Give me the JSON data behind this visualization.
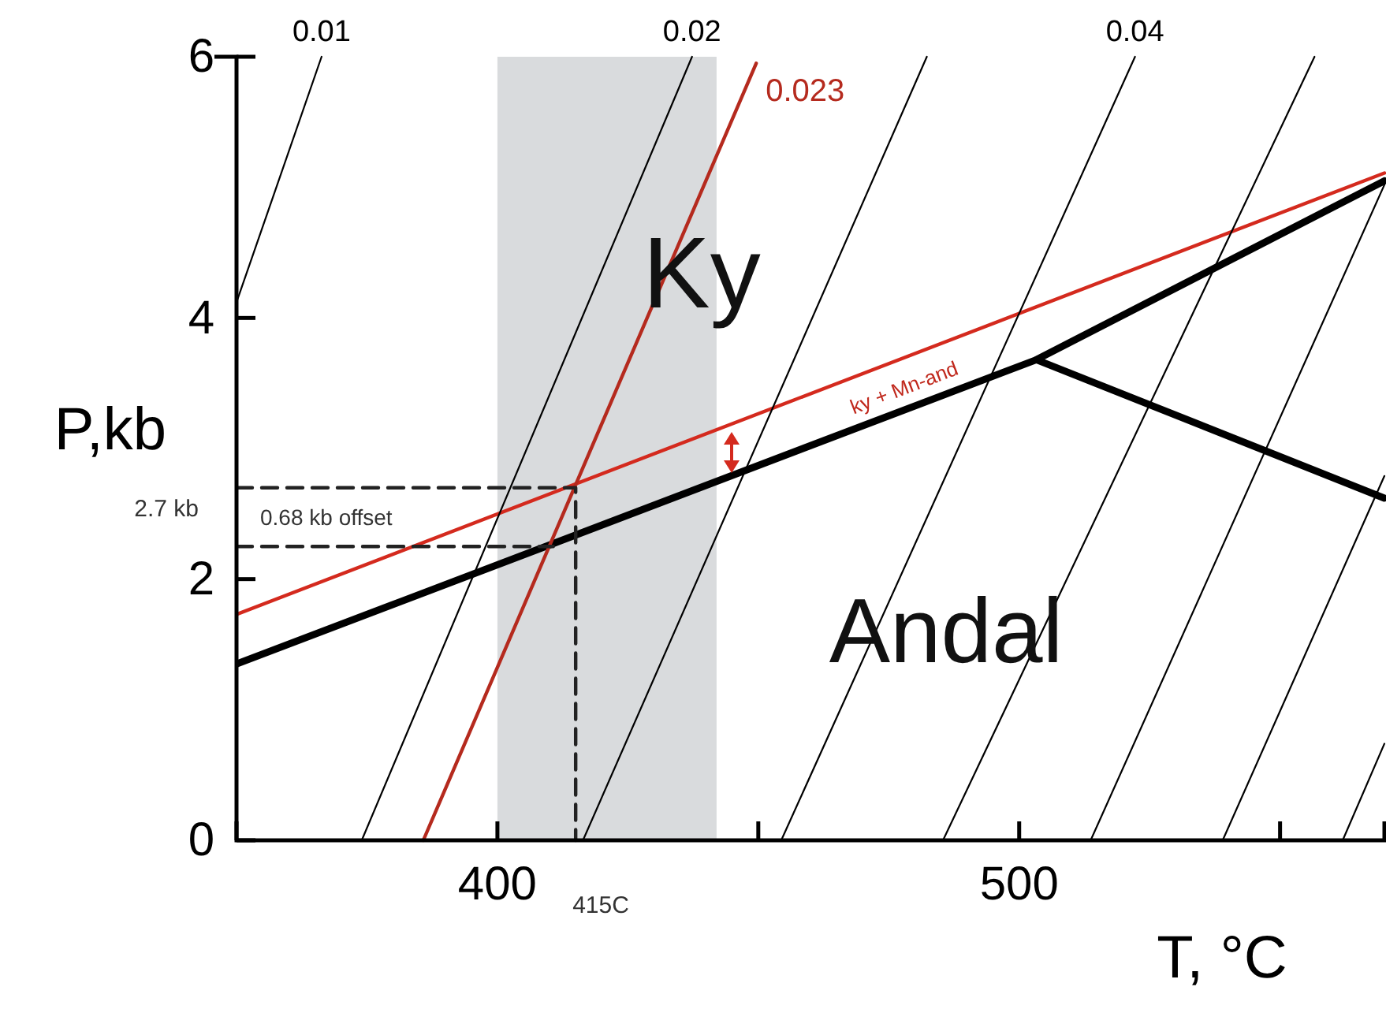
{
  "chart_data": {
    "type": "line",
    "xlabel": "T, °C",
    "ylabel": "P,kb",
    "xlim": [
      350,
      570
    ],
    "ylim": [
      0,
      6
    ],
    "xticks": [
      400,
      {
        "value": 450,
        "label": null
      },
      500,
      {
        "value": 550,
        "label": null
      }
    ],
    "yticks": [
      0,
      2,
      4,
      6
    ],
    "grid": false,
    "bands": [
      {
        "axis": "x",
        "from": 400,
        "to": 442,
        "color": "#d9dbdd"
      }
    ],
    "series": [
      {
        "color": "#000000",
        "x": [
          350,
          503.3,
          570
        ],
        "values": [
          1.35,
          3.68,
          5.05
        ]
      },
      {
        "color": "#000000",
        "x": [
          503.3,
          570
        ],
        "values": [
          3.68,
          2.62
        ]
      },
      {
        "color": "#d42a1e",
        "x": [
          350,
          570
        ],
        "values": [
          1.73,
          5.11
        ]
      },
      {
        "name": "0.023",
        "color": "#b52a1e",
        "x": [
          385.8,
          449.6
        ],
        "values": [
          0,
          5.95
        ]
      },
      {
        "name": "0.01",
        "color": "#000000",
        "x": [
          350,
          366.3
        ],
        "values": [
          4.12,
          6
        ]
      },
      {
        "name": "0.02",
        "color": "#000000",
        "x": [
          374,
          437.3
        ],
        "values": [
          0,
          6
        ]
      },
      {
        "color": "#000000",
        "x": [
          416.4,
          482.3
        ],
        "values": [
          0,
          6
        ]
      },
      {
        "name": "0.04",
        "color": "#000000",
        "x": [
          454.4,
          522.2
        ],
        "values": [
          0,
          6
        ]
      },
      {
        "color": "#000000",
        "x": [
          485.4,
          556.6
        ],
        "values": [
          0,
          6
        ]
      },
      {
        "color": "#000000",
        "x": [
          513.7,
          570
        ],
        "values": [
          0,
          5.02
        ]
      },
      {
        "color": "#000000",
        "x": [
          539,
          570
        ],
        "values": [
          0,
          2.79
        ]
      },
      {
        "color": "#000000",
        "x": [
          562,
          570
        ],
        "values": [
          0,
          0.74
        ]
      },
      {
        "color": "#222222",
        "line_style": "dashed",
        "x": [
          350,
          415,
          415
        ],
        "values": [
          2.7,
          2.7,
          0
        ]
      },
      {
        "color": "#222222",
        "line_style": "dashed",
        "x": [
          350,
          410.7
        ],
        "values": [
          2.25,
          2.25
        ]
      }
    ],
    "annotations": [
      {
        "text": "2.7 kb",
        "x": 350,
        "y": 2.7
      },
      {
        "text": "415C",
        "x": 415,
        "y": 0
      },
      "0.68 kb offset",
      "Ky",
      "Andal",
      "ky + Mn-and"
    ]
  }
}
